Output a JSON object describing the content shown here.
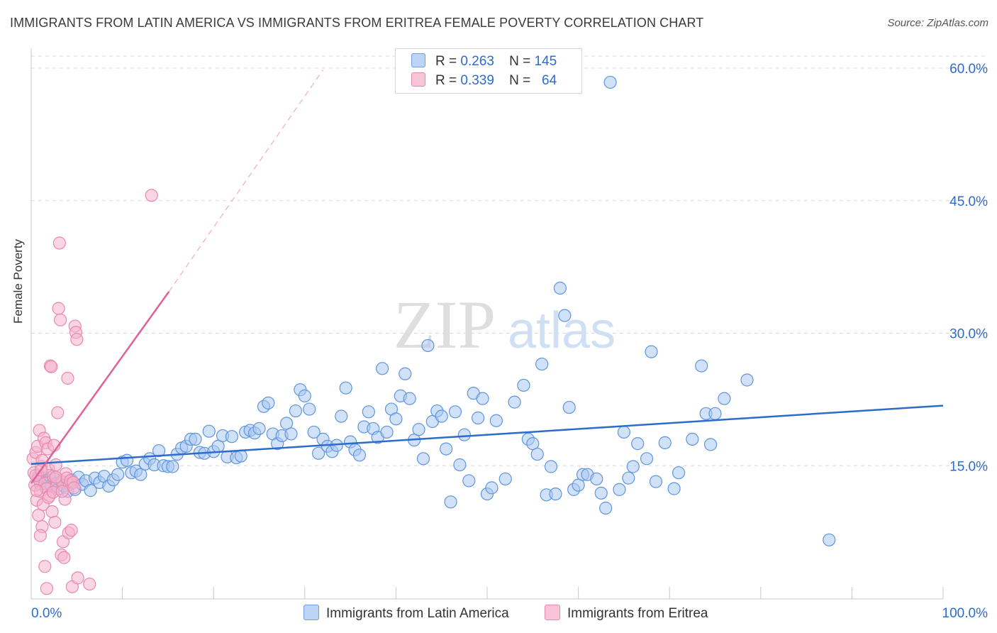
{
  "title": "IMMIGRANTS FROM LATIN AMERICA VS IMMIGRANTS FROM ERITREA FEMALE POVERTY CORRELATION CHART",
  "source": "Source: ZipAtlas.com",
  "watermark": {
    "zip": "ZIP",
    "atlas": "atlas"
  },
  "colors": {
    "blue": "#2d6bcc",
    "blue_fill": "#a9c8f3",
    "pink": "#e0609a",
    "pink_fill": "#f6b3cc",
    "grid": "#d9d9d9"
  },
  "legend": {
    "blue": {
      "r_label": "R =",
      "r_value": "0.263",
      "n_label": "N =",
      "n_value": "145"
    },
    "pink": {
      "r_label": "R =",
      "r_value": "0.339",
      "n_label": "N =",
      "n_value": "64"
    }
  },
  "chart_data": {
    "type": "scatter",
    "title": "IMMIGRANTS FROM LATIN AMERICA VS IMMIGRANTS FROM ERITREA FEMALE POVERTY CORRELATION CHART",
    "xlabel": "",
    "ylabel": "Female Poverty",
    "xlim": [
      0,
      100
    ],
    "ylim": [
      0,
      60
    ],
    "x_tick_labels": [
      "0.0%",
      "100.0%"
    ],
    "y_tick_labels": [
      "15.0%",
      "30.0%",
      "45.0%",
      "60.0%"
    ],
    "y_ticks": [
      15,
      30,
      45,
      60
    ],
    "grid": true,
    "legend_position": "top-center",
    "series": [
      {
        "name": "Immigrants from Latin America",
        "color": "#2d6bcc",
        "trend": {
          "x0": 0,
          "y0": 15.2,
          "x1": 100,
          "y1": 21.8,
          "style": "solid"
        },
        "points": [
          [
            0.8,
            13.8
          ],
          [
            1.0,
            12.9
          ],
          [
            1.2,
            13.3
          ],
          [
            1.4,
            13.6
          ],
          [
            1.6,
            12.6
          ],
          [
            1.8,
            13.1
          ],
          [
            2.0,
            13.9
          ],
          [
            2.2,
            12.8
          ],
          [
            2.5,
            13.5
          ],
          [
            2.8,
            13.0
          ],
          [
            3.0,
            12.4
          ],
          [
            3.3,
            13.2
          ],
          [
            3.6,
            12.7
          ],
          [
            4.0,
            12.1
          ],
          [
            4.4,
            13.4
          ],
          [
            4.8,
            12.3
          ],
          [
            5.2,
            13.7
          ],
          [
            5.6,
            12.9
          ],
          [
            6.0,
            13.3
          ],
          [
            6.5,
            12.2
          ],
          [
            7.0,
            13.6
          ],
          [
            7.5,
            13.1
          ],
          [
            8.0,
            13.8
          ],
          [
            8.5,
            12.7
          ],
          [
            9.0,
            13.4
          ],
          [
            9.5,
            14.0
          ],
          [
            10.0,
            15.4
          ],
          [
            10.5,
            15.6
          ],
          [
            11.0,
            14.2
          ],
          [
            11.5,
            14.4
          ],
          [
            12.0,
            14.0
          ],
          [
            12.5,
            15.2
          ],
          [
            13.0,
            15.8
          ],
          [
            13.5,
            15.1
          ],
          [
            14.0,
            16.7
          ],
          [
            14.5,
            15.0
          ],
          [
            15.0,
            14.9
          ],
          [
            15.5,
            14.9
          ],
          [
            16.0,
            16.3
          ],
          [
            16.5,
            17.0
          ],
          [
            17.0,
            17.2
          ],
          [
            17.5,
            18.0
          ],
          [
            18.0,
            18.0
          ],
          [
            18.5,
            16.5
          ],
          [
            19.0,
            16.4
          ],
          [
            19.5,
            18.9
          ],
          [
            20.0,
            16.6
          ],
          [
            20.5,
            17.2
          ],
          [
            21.0,
            18.4
          ],
          [
            21.5,
            16.0
          ],
          [
            22.0,
            18.3
          ],
          [
            22.5,
            15.9
          ],
          [
            23.0,
            16.1
          ],
          [
            23.5,
            18.8
          ],
          [
            24.0,
            19.0
          ],
          [
            24.5,
            18.7
          ],
          [
            25.0,
            19.2
          ],
          [
            25.5,
            21.7
          ],
          [
            26.0,
            22.1
          ],
          [
            26.5,
            18.6
          ],
          [
            27.0,
            17.5
          ],
          [
            27.5,
            18.4
          ],
          [
            28.0,
            19.8
          ],
          [
            28.5,
            18.6
          ],
          [
            29.0,
            21.2
          ],
          [
            29.5,
            23.6
          ],
          [
            30.0,
            22.9
          ],
          [
            30.5,
            21.4
          ],
          [
            31.0,
            18.8
          ],
          [
            31.5,
            16.4
          ],
          [
            32.0,
            18.0
          ],
          [
            32.5,
            17.2
          ],
          [
            33.0,
            16.6
          ],
          [
            33.5,
            17.3
          ],
          [
            34.0,
            20.6
          ],
          [
            34.5,
            23.8
          ],
          [
            35.0,
            17.7
          ],
          [
            35.5,
            16.8
          ],
          [
            36.0,
            16.2
          ],
          [
            36.5,
            19.4
          ],
          [
            37.0,
            21.1
          ],
          [
            37.5,
            19.2
          ],
          [
            38.0,
            18.2
          ],
          [
            38.5,
            26.0
          ],
          [
            39.0,
            18.8
          ],
          [
            39.5,
            21.4
          ],
          [
            40.0,
            20.3
          ],
          [
            40.5,
            22.9
          ],
          [
            41.0,
            25.4
          ],
          [
            41.5,
            22.6
          ],
          [
            42.0,
            17.9
          ],
          [
            42.5,
            19.1
          ],
          [
            43.0,
            15.8
          ],
          [
            43.5,
            28.6
          ],
          [
            44.0,
            20.0
          ],
          [
            44.5,
            21.2
          ],
          [
            45.0,
            20.6
          ],
          [
            45.5,
            16.9
          ],
          [
            46.0,
            10.9
          ],
          [
            46.5,
            21.1
          ],
          [
            47.0,
            15.1
          ],
          [
            47.5,
            18.5
          ],
          [
            48.0,
            13.3
          ],
          [
            48.5,
            23.2
          ],
          [
            49.0,
            20.4
          ],
          [
            49.5,
            22.6
          ],
          [
            50.0,
            11.8
          ],
          [
            50.5,
            12.5
          ],
          [
            51.0,
            20.1
          ],
          [
            52.0,
            13.5
          ],
          [
            53.0,
            22.2
          ],
          [
            54.0,
            24.1
          ],
          [
            54.5,
            18.0
          ],
          [
            55.0,
            17.5
          ],
          [
            55.5,
            16.3
          ],
          [
            56.0,
            26.5
          ],
          [
            56.5,
            11.7
          ],
          [
            57.0,
            14.9
          ],
          [
            57.5,
            11.8
          ],
          [
            58.0,
            35.1
          ],
          [
            58.5,
            32.0
          ],
          [
            59.0,
            21.6
          ],
          [
            59.5,
            12.3
          ],
          [
            60.0,
            12.8
          ],
          [
            60.5,
            14.0
          ],
          [
            61.0,
            14.0
          ],
          [
            62.0,
            13.5
          ],
          [
            62.5,
            11.9
          ],
          [
            63.0,
            10.2
          ],
          [
            63.5,
            58.4
          ],
          [
            64.5,
            12.3
          ],
          [
            65.0,
            18.8
          ],
          [
            65.5,
            13.6
          ],
          [
            66.0,
            14.9
          ],
          [
            66.5,
            17.5
          ],
          [
            67.5,
            15.8
          ],
          [
            68.0,
            27.9
          ],
          [
            68.5,
            13.2
          ],
          [
            69.5,
            17.6
          ],
          [
            70.5,
            12.4
          ],
          [
            71.0,
            14.2
          ],
          [
            72.5,
            18.0
          ],
          [
            73.5,
            26.3
          ],
          [
            74.0,
            20.9
          ],
          [
            74.5,
            17.4
          ],
          [
            75.0,
            20.9
          ],
          [
            76.0,
            22.6
          ],
          [
            78.5,
            24.7
          ],
          [
            87.5,
            6.6
          ]
        ]
      },
      {
        "name": "Immigrants from Eritrea",
        "color": "#e0609a",
        "trend": {
          "x0": 0,
          "y0": 13.0,
          "x1": 15.1,
          "y1": 34.7,
          "style": "solid",
          "dashed_to": {
            "x": 32.0,
            "y": 59.8
          }
        },
        "points": [
          [
            0.2,
            15.8
          ],
          [
            0.3,
            14.2
          ],
          [
            0.4,
            12.8
          ],
          [
            0.5,
            16.5
          ],
          [
            0.6,
            11.1
          ],
          [
            0.7,
            17.2
          ],
          [
            0.8,
            13.5
          ],
          [
            0.9,
            19.0
          ],
          [
            1.0,
            12.1
          ],
          [
            1.1,
            14.9
          ],
          [
            1.2,
            15.6
          ],
          [
            1.3,
            10.6
          ],
          [
            1.4,
            18.1
          ],
          [
            1.5,
            13.0
          ],
          [
            1.6,
            17.6
          ],
          [
            1.7,
            12.4
          ],
          [
            1.8,
            16.9
          ],
          [
            1.9,
            14.6
          ],
          [
            2.0,
            11.6
          ],
          [
            2.1,
            26.3
          ],
          [
            2.2,
            26.2
          ],
          [
            2.3,
            9.8
          ],
          [
            2.4,
            13.8
          ],
          [
            2.5,
            17.3
          ],
          [
            2.6,
            8.6
          ],
          [
            2.7,
            15.1
          ],
          [
            2.8,
            12.7
          ],
          [
            2.9,
            21.0
          ],
          [
            3.0,
            32.8
          ],
          [
            3.1,
            40.2
          ],
          [
            3.2,
            31.5
          ],
          [
            3.3,
            4.9
          ],
          [
            3.4,
            13.2
          ],
          [
            3.5,
            6.4
          ],
          [
            3.6,
            4.6
          ],
          [
            3.7,
            11.2
          ],
          [
            3.8,
            14.1
          ],
          [
            3.9,
            13.6
          ],
          [
            4.0,
            24.9
          ],
          [
            4.1,
            7.4
          ],
          [
            4.2,
            12.9
          ],
          [
            4.3,
            13.3
          ],
          [
            4.4,
            7.7
          ],
          [
            4.5,
            1.3
          ],
          [
            4.6,
            13.1
          ],
          [
            4.7,
            12.5
          ],
          [
            4.8,
            30.8
          ],
          [
            4.9,
            30.1
          ],
          [
            5.0,
            29.3
          ],
          [
            5.1,
            2.3
          ],
          [
            6.4,
            1.6
          ],
          [
            13.2,
            45.6
          ],
          [
            1.5,
            3.6
          ],
          [
            1.7,
            1.1
          ],
          [
            1.2,
            8.1
          ],
          [
            1.0,
            7.1
          ],
          [
            0.8,
            9.4
          ],
          [
            1.9,
            11.4
          ],
          [
            2.4,
            12.0
          ],
          [
            0.5,
            13.9
          ],
          [
            0.6,
            12.2
          ],
          [
            1.1,
            14.5
          ],
          [
            2.7,
            13.7
          ],
          [
            3.4,
            12.1
          ]
        ]
      }
    ]
  },
  "bottom_legend": {
    "blue_label": "Immigrants from Latin America",
    "pink_label": "Immigrants from Eritrea"
  }
}
